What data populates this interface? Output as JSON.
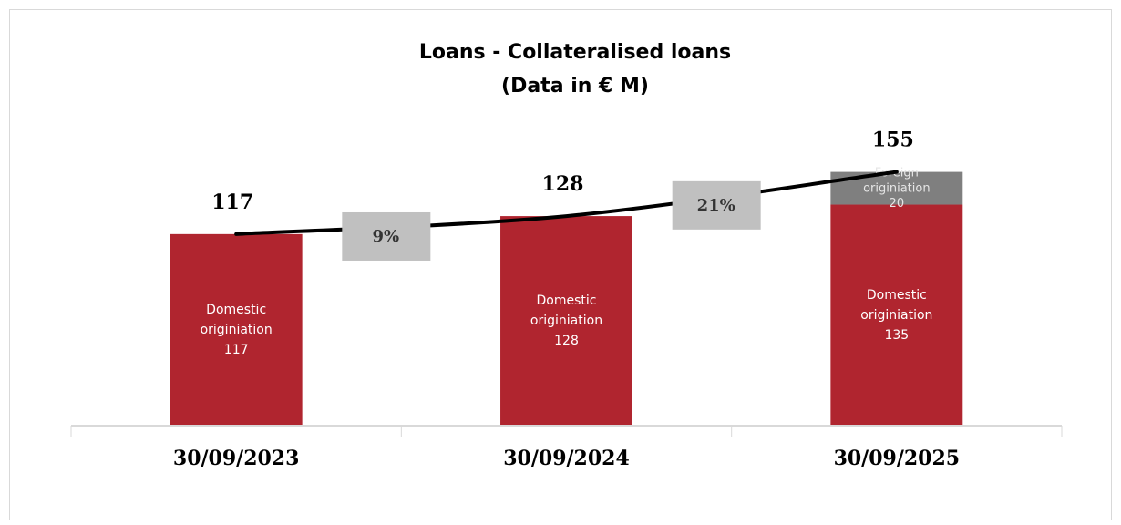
{
  "chart_data": {
    "type": "bar",
    "title": "Loans - Collateralised loans",
    "subtitle": "(Data in € M)",
    "categories": [
      "30/09/2023",
      "30/09/2024",
      "30/09/2025"
    ],
    "series": [
      {
        "name": "Domestic originiation",
        "color": "#b0252f",
        "values": [
          117,
          128,
          135
        ]
      },
      {
        "name": "Foreign originiation",
        "color": "#7f7f7f",
        "values": [
          null,
          null,
          20
        ]
      }
    ],
    "totals": {
      "color": "#000000",
      "values": [
        117,
        128,
        155
      ]
    },
    "growth": {
      "color": "#c0c0c0",
      "values": [
        9,
        21
      ],
      "value_labels": [
        "9%",
        "21%"
      ]
    },
    "ylim": [
      0,
      260
    ],
    "stacked": true
  }
}
